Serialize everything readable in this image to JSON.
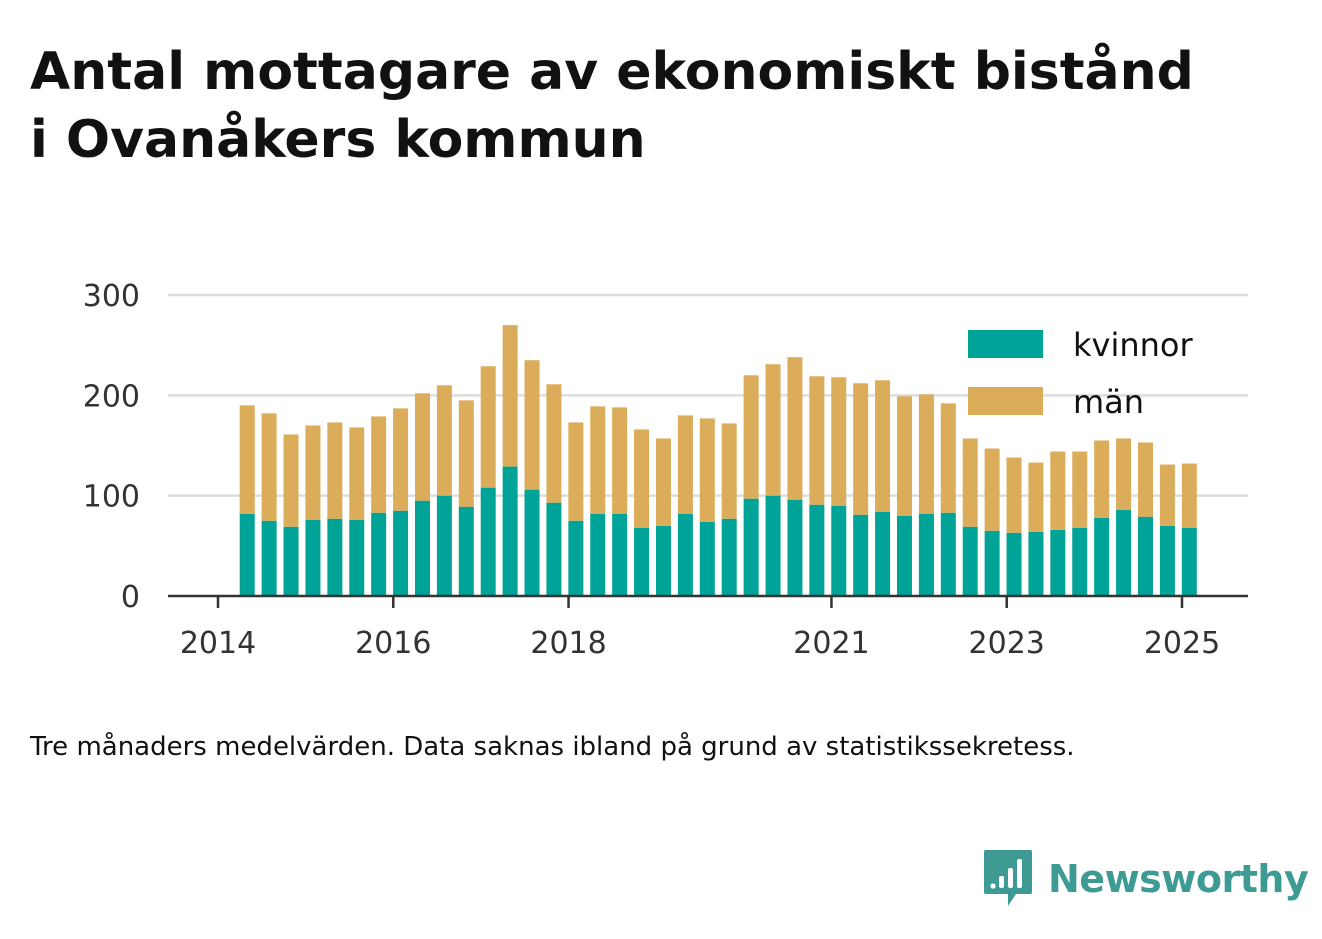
{
  "title_lines": [
    "Antal mottagare av ekonomiskt bistånd",
    "i Ovanåkers kommun"
  ],
  "note": "Tre månaders medelvärden. Data saknas ibland på grund av statistikssekretess.",
  "brand": {
    "name": "Newsworthy",
    "color": "#3d9b94",
    "icon": "newsworthy-logo-icon"
  },
  "chart_data": {
    "type": "bar",
    "stacked": true,
    "x_axis": {
      "type": "date",
      "ticks": [
        "2014",
        "2016",
        "2018",
        "2021",
        "2023",
        "2025"
      ]
    },
    "y_axis": {
      "ylim": [
        0,
        300
      ],
      "ticks": [
        0,
        100,
        200,
        300
      ]
    },
    "grid": true,
    "legend_position": "top-right",
    "x": [
      "2014-05",
      "2014-08",
      "2014-11",
      "2015-02",
      "2015-05",
      "2015-08",
      "2015-11",
      "2016-02",
      "2016-05",
      "2016-08",
      "2016-11",
      "2017-02",
      "2017-05",
      "2017-08",
      "2017-11",
      "2018-02",
      "2018-05",
      "2018-08",
      "2018-11",
      "2019-02",
      "2019-05",
      "2019-08",
      "2019-11",
      "2020-02",
      "2020-05",
      "2020-08",
      "2020-11",
      "2021-02",
      "2021-05",
      "2021-08",
      "2021-11",
      "2022-02",
      "2022-05",
      "2022-08",
      "2022-11",
      "2023-02",
      "2023-05",
      "2023-08",
      "2023-11",
      "2024-02",
      "2024-05",
      "2024-08",
      "2024-11",
      "2025-02"
    ],
    "series": [
      {
        "name": "kvinnor",
        "color": "#00a398",
        "values": [
          82,
          75,
          69,
          76,
          77,
          76,
          83,
          85,
          95,
          100,
          89,
          108,
          129,
          106,
          93,
          75,
          82,
          82,
          68,
          70,
          82,
          74,
          77,
          97,
          100,
          96,
          91,
          90,
          81,
          84,
          80,
          82,
          83,
          69,
          65,
          63,
          64,
          66,
          68,
          78,
          86,
          79,
          70,
          68
        ]
      },
      {
        "name": "män",
        "color": "#dbac5a",
        "values": [
          108,
          107,
          92,
          94,
          96,
          92,
          96,
          102,
          107,
          110,
          106,
          121,
          141,
          129,
          118,
          98,
          107,
          106,
          98,
          87,
          98,
          103,
          95,
          123,
          131,
          142,
          128,
          128,
          131,
          131,
          119,
          119,
          109,
          88,
          82,
          75,
          69,
          78,
          76,
          77,
          71,
          74,
          61,
          64
        ]
      }
    ]
  }
}
